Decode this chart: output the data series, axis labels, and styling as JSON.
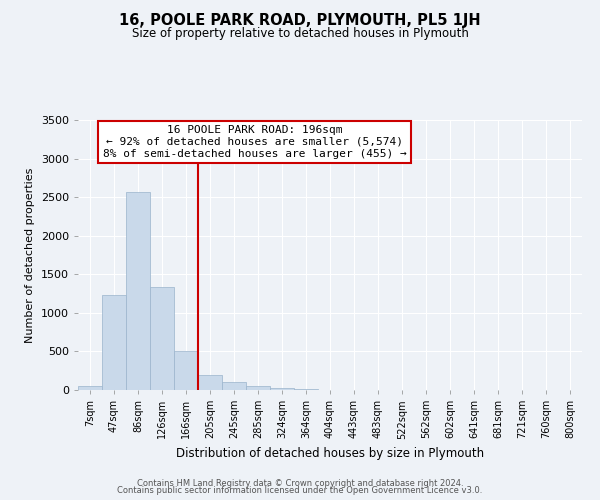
{
  "title": "16, POOLE PARK ROAD, PLYMOUTH, PL5 1JH",
  "subtitle": "Size of property relative to detached houses in Plymouth",
  "xlabel": "Distribution of detached houses by size in Plymouth",
  "ylabel": "Number of detached properties",
  "bar_labels": [
    "7sqm",
    "47sqm",
    "86sqm",
    "126sqm",
    "166sqm",
    "205sqm",
    "245sqm",
    "285sqm",
    "324sqm",
    "364sqm",
    "404sqm",
    "443sqm",
    "483sqm",
    "522sqm",
    "562sqm",
    "602sqm",
    "641sqm",
    "681sqm",
    "721sqm",
    "760sqm",
    "800sqm"
  ],
  "bar_values": [
    50,
    1230,
    2570,
    1340,
    500,
    200,
    110,
    50,
    30,
    10,
    5,
    0,
    0,
    0,
    0,
    0,
    0,
    0,
    0,
    0,
    0
  ],
  "bar_color": "#c9d9ea",
  "bar_edgecolor": "#9ab4cc",
  "vline_x": 4.5,
  "vline_color": "#cc0000",
  "annotation_title": "16 POOLE PARK ROAD: 196sqm",
  "annotation_line1": "← 92% of detached houses are smaller (5,574)",
  "annotation_line2": "8% of semi-detached houses are larger (455) →",
  "annotation_box_edgecolor": "#cc0000",
  "ylim": [
    0,
    3500
  ],
  "yticks": [
    0,
    500,
    1000,
    1500,
    2000,
    2500,
    3000,
    3500
  ],
  "footer1": "Contains HM Land Registry data © Crown copyright and database right 2024.",
  "footer2": "Contains public sector information licensed under the Open Government Licence v3.0.",
  "bg_color": "#eef2f7",
  "plot_bg_color": "#eef2f7",
  "grid_color": "#ffffff"
}
